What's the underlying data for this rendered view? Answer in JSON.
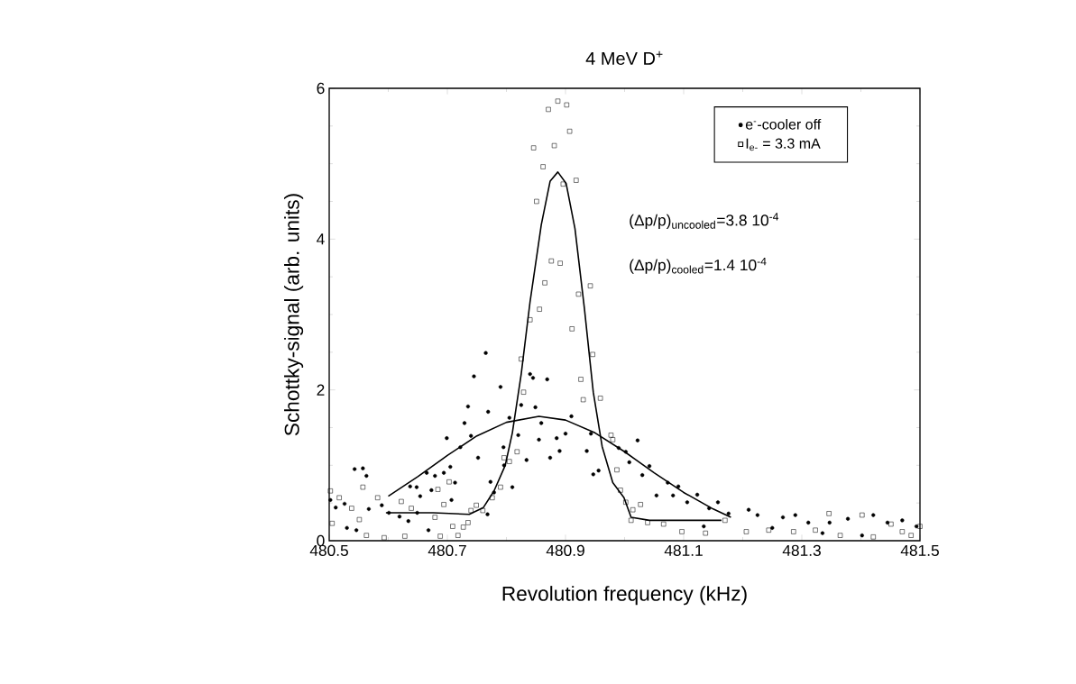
{
  "chart_data": {
    "type": "scatter",
    "title": "4 MeV D$^{+}$",
    "xlabel": "Revolution frequency (kHz)",
    "ylabel": "Schottky-signal (arb. units)",
    "xlim": [
      480.5,
      481.5
    ],
    "ylim": [
      0,
      6
    ],
    "xticks": [
      480.5,
      480.7,
      480.9,
      481.1,
      481.3,
      481.5
    ],
    "yticks": [
      0,
      2,
      4,
      6
    ],
    "legend": "top right",
    "annotations": [
      "(Δp/p)$_{uncooled}$=3.8 10$^{-4}$",
      "(Δp/p)$_{cooled}$=1.4 10$^{-4}$"
    ],
    "series": [
      {
        "name": "e$^{-}$-cooler off",
        "marker": "circle",
        "color": "#000000",
        "x": [
          480.765,
          480.745,
          480.79,
          480.735,
          480.729,
          480.769,
          480.74,
          480.699,
          480.722,
          480.752,
          480.84,
          480.845,
          480.869,
          480.849,
          480.825,
          480.82,
          480.805,
          480.855,
          480.874,
          480.834,
          480.89,
          480.885,
          480.9,
          480.91,
          480.936,
          480.943,
          480.859,
          480.947,
          480.956,
          480.795,
          480.773,
          480.705,
          480.694,
          480.665,
          480.679,
          480.713,
          480.637,
          480.648,
          480.673,
          480.707,
          480.654,
          480.543,
          480.557,
          480.563,
          480.502,
          480.511,
          480.526,
          480.53,
          480.546,
          480.567,
          480.601,
          480.619,
          480.649,
          480.668,
          480.634,
          480.589,
          480.768,
          480.779,
          480.796,
          480.81,
          480.99,
          481.002,
          481.022,
          481.008,
          481.042,
          481.03,
          481.054,
          481.073,
          481.091,
          481.082,
          481.123,
          481.106,
          481.158,
          481.143,
          481.176,
          481.21,
          481.225,
          481.268,
          481.289,
          481.311,
          481.347,
          481.378,
          481.421,
          481.445,
          481.47,
          481.494,
          481.25,
          481.335,
          481.402,
          481.134
        ],
        "values": [
          2.49,
          2.18,
          2.04,
          1.78,
          1.56,
          1.71,
          1.39,
          1.36,
          1.24,
          1.1,
          2.21,
          2.16,
          2.14,
          1.77,
          1.8,
          1.4,
          1.63,
          1.34,
          1.1,
          1.07,
          1.19,
          1.36,
          1.42,
          1.65,
          1.19,
          1.42,
          1.56,
          0.88,
          0.93,
          1.24,
          0.78,
          0.98,
          0.9,
          0.9,
          0.86,
          0.77,
          0.72,
          0.71,
          0.67,
          0.54,
          0.59,
          0.95,
          0.96,
          0.86,
          0.54,
          0.44,
          0.49,
          0.17,
          0.14,
          0.42,
          0.37,
          0.32,
          0.37,
          0.14,
          0.26,
          0.47,
          0.35,
          0.64,
          1.0,
          0.71,
          1.23,
          1.18,
          1.33,
          1.04,
          0.99,
          0.87,
          0.6,
          0.77,
          0.72,
          0.6,
          0.61,
          0.51,
          0.51,
          0.43,
          0.36,
          0.41,
          0.34,
          0.31,
          0.34,
          0.24,
          0.24,
          0.29,
          0.34,
          0.24,
          0.27,
          0.19,
          0.17,
          0.1,
          0.07,
          0.19
        ]
      },
      {
        "name": "I$_{e-}$ = 3.3 mA",
        "marker": "square",
        "color": "#000000",
        "x": [
          480.871,
          480.887,
          480.902,
          480.907,
          480.846,
          480.881,
          480.862,
          480.918,
          480.896,
          480.851,
          480.876,
          480.891,
          480.865,
          480.942,
          480.922,
          480.856,
          480.84,
          480.911,
          480.946,
          480.825,
          480.926,
          480.829,
          480.93,
          480.959,
          480.977,
          480.98,
          480.818,
          480.805,
          480.796,
          480.79,
          480.776,
          480.749,
          480.74,
          480.76,
          480.703,
          480.684,
          480.694,
          480.557,
          480.582,
          480.517,
          480.502,
          480.505,
          480.538,
          480.551,
          480.563,
          480.593,
          480.628,
          480.688,
          480.718,
          480.622,
          480.639,
          480.679,
          480.709,
          480.727,
          480.735,
          480.987,
          480.993,
          481.002,
          481.014,
          481.027,
          481.011,
          481.039,
          481.066,
          481.097,
          481.137,
          481.17,
          481.206,
          481.244,
          481.286,
          481.323,
          481.346,
          481.365,
          481.402,
          481.421,
          481.451,
          481.47,
          481.485,
          481.5
        ],
        "values": [
          5.72,
          5.83,
          5.78,
          5.43,
          5.21,
          5.24,
          4.96,
          4.78,
          4.73,
          4.5,
          3.71,
          3.68,
          3.42,
          3.38,
          3.27,
          3.07,
          2.93,
          2.81,
          2.47,
          2.41,
          2.14,
          1.97,
          1.87,
          1.89,
          1.4,
          1.34,
          1.18,
          1.05,
          1.1,
          0.71,
          0.57,
          0.47,
          0.4,
          0.4,
          0.78,
          0.68,
          0.48,
          0.71,
          0.57,
          0.57,
          0.66,
          0.23,
          0.43,
          0.28,
          0.07,
          0.04,
          0.06,
          0.06,
          0.07,
          0.52,
          0.43,
          0.31,
          0.19,
          0.18,
          0.24,
          0.94,
          0.67,
          0.51,
          0.41,
          0.48,
          0.27,
          0.24,
          0.22,
          0.12,
          0.1,
          0.27,
          0.12,
          0.14,
          0.12,
          0.14,
          0.36,
          0.07,
          0.34,
          0.05,
          0.22,
          0.12,
          0.07,
          0.19
        ]
      },
      {
        "type": "line",
        "marker": "none",
        "line_style": "solid",
        "color": "#000000",
        "x": [
          480.6,
          480.65,
          480.7,
          480.75,
          480.8,
          480.855,
          480.9,
          480.95,
          481.0,
          481.05,
          481.1,
          481.15,
          481.18
        ],
        "values": [
          0.59,
          0.85,
          1.13,
          1.39,
          1.57,
          1.65,
          1.6,
          1.43,
          1.18,
          0.9,
          0.64,
          0.42,
          0.31
        ]
      },
      {
        "type": "line",
        "marker": "none",
        "line_style": "solid",
        "color": "#000000",
        "x": [
          480.596,
          480.676,
          480.737,
          480.761,
          480.779,
          480.798,
          480.81,
          480.825,
          480.84,
          480.859,
          480.874,
          480.887,
          480.901,
          480.916,
          480.932,
          480.947,
          480.962,
          480.98,
          480.999,
          481.011,
          481.042,
          481.164
        ],
        "values": [
          0.37,
          0.37,
          0.35,
          0.44,
          0.66,
          1.0,
          1.43,
          2.21,
          3.17,
          4.19,
          4.77,
          4.89,
          4.74,
          4.14,
          3.08,
          1.97,
          1.25,
          0.77,
          0.57,
          0.31,
          0.27,
          0.27
        ]
      }
    ]
  }
}
